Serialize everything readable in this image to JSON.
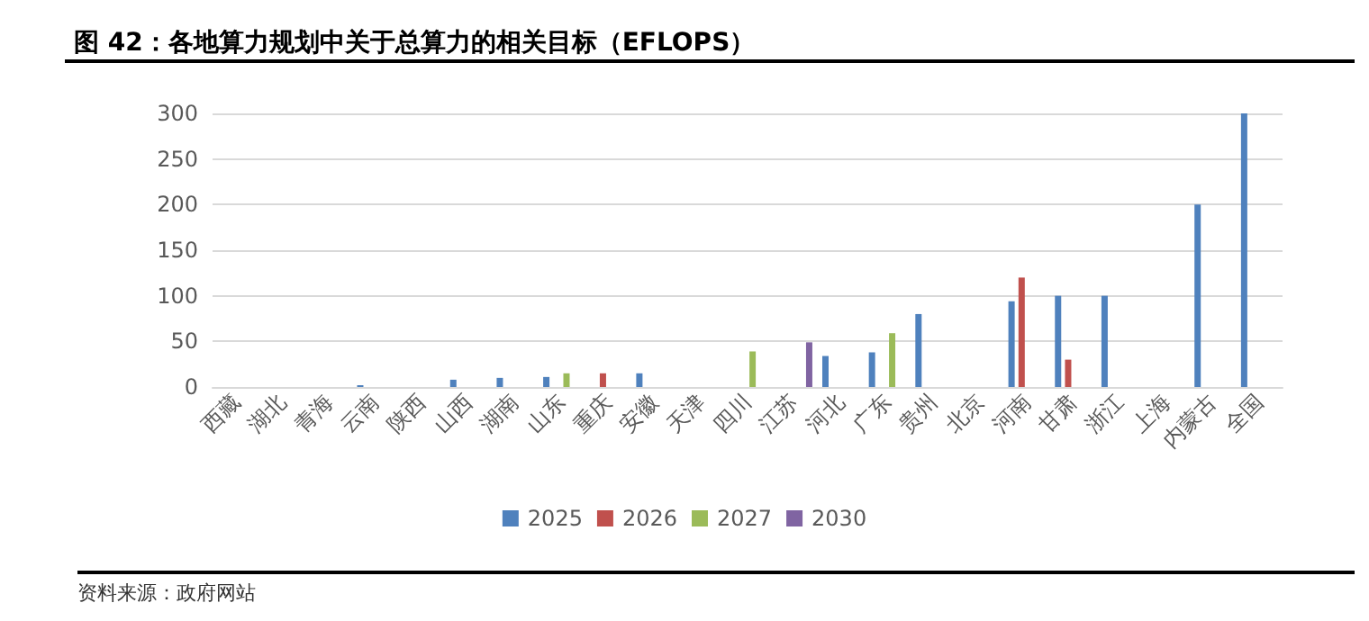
{
  "chart_data": {
    "type": "bar",
    "title": "图 42：各地算力规划中关于总算力的相关目标（EFLOPS）",
    "categories": [
      "西藏",
      "湖北",
      "青海",
      "云南",
      "陕西",
      "山西",
      "湖南",
      "山东",
      "重庆",
      "安徽",
      "天津",
      "四川",
      "江苏",
      "河北",
      "广东",
      "贵州",
      "北京",
      "河南",
      "甘肃",
      "浙江",
      "上海",
      "内蒙古",
      "全国"
    ],
    "series": [
      {
        "name": "2025",
        "color": "#4f81bd",
        "values": [
          null,
          null,
          null,
          2,
          null,
          8,
          10,
          11,
          null,
          15,
          null,
          null,
          null,
          34,
          38,
          80,
          null,
          94,
          100,
          100,
          null,
          200,
          300
        ]
      },
      {
        "name": "2026",
        "color": "#c0504d",
        "values": [
          null,
          null,
          null,
          null,
          null,
          null,
          null,
          null,
          15,
          null,
          null,
          null,
          null,
          null,
          null,
          null,
          null,
          120,
          30,
          null,
          null,
          null,
          null
        ]
      },
      {
        "name": "2027",
        "color": "#9bbb59",
        "values": [
          null,
          null,
          null,
          null,
          null,
          null,
          null,
          15,
          null,
          null,
          null,
          39,
          null,
          null,
          59,
          null,
          null,
          null,
          null,
          null,
          null,
          null,
          null
        ]
      },
      {
        "name": "2030",
        "color": "#8064a2",
        "values": [
          null,
          null,
          null,
          null,
          null,
          null,
          null,
          null,
          null,
          null,
          null,
          null,
          49,
          null,
          null,
          null,
          null,
          null,
          null,
          null,
          null,
          null,
          null
        ]
      }
    ],
    "ylim": [
      0,
      300
    ],
    "yticks": [
      0,
      50,
      100,
      150,
      200,
      250,
      300
    ],
    "grid": "y",
    "legend": "bottom",
    "annotations": [
      "资料来源：政府网站"
    ]
  }
}
